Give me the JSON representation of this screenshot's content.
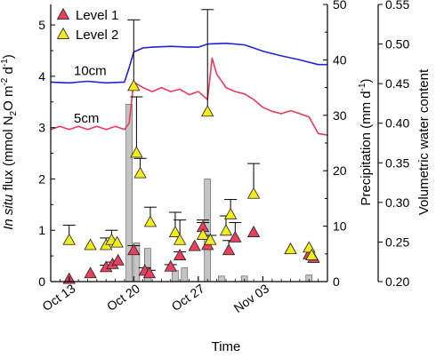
{
  "chart_data": {
    "type": "line",
    "x_axis": {
      "label": "Time",
      "range": [
        "2013-10-11",
        "2013-11-10"
      ],
      "ticks": [
        {
          "date": "2013-10-13",
          "label": "Oct 13"
        },
        {
          "date": "2013-10-20",
          "label": "Oct 20"
        },
        {
          "date": "2013-10-27",
          "label": "Oct 27"
        },
        {
          "date": "2013-11-03",
          "label": "Nov 03"
        }
      ]
    },
    "y_axis_left": {
      "label_prefix": "In situ",
      "label_main": " flux (mmol N",
      "label_sub": "2",
      "label_mid": "O m",
      "label_sup1": "-2",
      "label_mid2": " d",
      "label_sup2": "-1",
      "label_end": ")",
      "range": [
        0,
        5.4
      ],
      "ticks": [
        "0",
        "1",
        "2",
        "3",
        "4",
        "5"
      ]
    },
    "y_axis_precip": {
      "label_main": "Precipitation (mm d",
      "label_sup": "-1",
      "label_end": ")",
      "range": [
        0,
        50
      ],
      "ticks": [
        "0",
        "10",
        "20",
        "30",
        "40",
        "50"
      ]
    },
    "y_axis_vwc": {
      "label": "Volumetric water content",
      "range": [
        0.2,
        0.55
      ],
      "ticks": [
        "0.20",
        "0.25",
        "0.30",
        "0.35",
        "0.40",
        "0.45",
        "0.50",
        "0.55"
      ]
    },
    "legend": {
      "placement": "top-left",
      "entries": [
        {
          "label": "Level 1",
          "color": "#e8405d"
        },
        {
          "label": "Level 2",
          "color": "#f2ec1a"
        }
      ]
    },
    "line_labels": [
      {
        "text": "10cm",
        "series": "vwc_10cm",
        "color": "#2323d6"
      },
      {
        "text": "5cm",
        "series": "vwc_5cm",
        "color": "#e63a5c"
      }
    ],
    "series": [
      {
        "id": "vwc_10cm",
        "axis": "vwc",
        "color": "#2323d6",
        "points": [
          [
            "2013-10-11",
            0.452
          ],
          [
            "2013-10-13",
            0.451
          ],
          [
            "2013-10-15",
            0.453
          ],
          [
            "2013-10-17",
            0.451
          ],
          [
            "2013-10-19",
            0.452
          ],
          [
            "2013-10-19.5",
            0.47
          ],
          [
            "2013-10-20",
            0.49
          ],
          [
            "2013-10-21",
            0.495
          ],
          [
            "2013-10-22",
            0.496
          ],
          [
            "2013-10-24",
            0.497
          ],
          [
            "2013-10-26",
            0.496
          ],
          [
            "2013-10-27",
            0.496
          ],
          [
            "2013-10-28",
            0.5
          ],
          [
            "2013-10-30",
            0.501
          ],
          [
            "2013-11-01",
            0.499
          ],
          [
            "2013-11-02",
            0.495
          ],
          [
            "2013-11-03",
            0.491
          ],
          [
            "2013-11-05",
            0.485
          ],
          [
            "2013-11-07",
            0.48
          ],
          [
            "2013-11-09",
            0.474
          ],
          [
            "2013-11-10",
            0.474
          ]
        ]
      },
      {
        "id": "vwc_5cm",
        "axis": "vwc",
        "color": "#e63a5c",
        "points": [
          [
            "2013-10-11",
            0.392
          ],
          [
            "2013-10-12",
            0.396
          ],
          [
            "2013-10-13",
            0.392
          ],
          [
            "2013-10-14",
            0.396
          ],
          [
            "2013-10-15",
            0.392
          ],
          [
            "2013-10-16",
            0.396
          ],
          [
            "2013-10-17",
            0.392
          ],
          [
            "2013-10-18",
            0.396
          ],
          [
            "2013-10-19",
            0.392
          ],
          [
            "2013-10-19.5",
            0.4
          ],
          [
            "2013-10-20",
            0.452
          ],
          [
            "2013-10-21",
            0.445
          ],
          [
            "2013-10-22",
            0.44
          ],
          [
            "2013-10-23",
            0.445
          ],
          [
            "2013-10-24",
            0.44
          ],
          [
            "2013-10-25",
            0.443
          ],
          [
            "2013-10-26",
            0.436
          ],
          [
            "2013-10-27",
            0.44
          ],
          [
            "2013-10-28",
            0.43
          ],
          [
            "2013-10-28.5",
            0.482
          ],
          [
            "2013-10-29",
            0.462
          ],
          [
            "2013-10-30",
            0.445
          ],
          [
            "2013-10-31",
            0.44
          ],
          [
            "2013-11-01",
            0.437
          ],
          [
            "2013-11-02",
            0.43
          ],
          [
            "2013-11-03",
            0.42
          ],
          [
            "2013-11-04",
            0.415
          ],
          [
            "2013-11-05",
            0.412
          ],
          [
            "2013-11-06",
            0.416
          ],
          [
            "2013-11-07",
            0.412
          ],
          [
            "2013-11-08",
            0.408
          ],
          [
            "2013-11-09",
            0.387
          ],
          [
            "2013-11-10",
            0.385
          ]
        ]
      },
      {
        "id": "precipitation",
        "type": "bar",
        "axis": "precip",
        "color": "#c4c4c4",
        "points": [
          [
            "2013-10-19.5",
            32
          ],
          [
            "2013-10-20.3",
            7
          ],
          [
            "2013-10-21.5",
            6
          ],
          [
            "2013-10-24.5",
            2
          ],
          [
            "2013-10-25.5",
            2.5
          ],
          [
            "2013-10-28",
            18.5
          ],
          [
            "2013-10-29.5",
            1
          ],
          [
            "2013-11-01",
            1
          ],
          [
            "2013-11-08",
            1.2
          ]
        ]
      },
      {
        "id": "level1",
        "name": "Level 1",
        "type": "scatter",
        "axis": "flux",
        "color": "#e8405d",
        "points": [
          {
            "x": "2013-10-13",
            "y": 0.04
          },
          {
            "x": "2013-10-15.3",
            "y": 0.15
          },
          {
            "x": "2013-10-17",
            "y": 0.27,
            "err": 0.05
          },
          {
            "x": "2013-10-17.7",
            "y": 0.33,
            "err": 0.05
          },
          {
            "x": "2013-10-18.3",
            "y": 0.4
          },
          {
            "x": "2013-10-20",
            "y": 0.6,
            "err": 0.1
          },
          {
            "x": "2013-10-21.2",
            "y": 0.2,
            "err": 0.07
          },
          {
            "x": "2013-10-21.7",
            "y": 0.15,
            "err": 0.07
          },
          {
            "x": "2013-10-24",
            "y": 0.28,
            "err": 0.05
          },
          {
            "x": "2013-10-25",
            "y": 0.5,
            "err": 0.08
          },
          {
            "x": "2013-10-26.6",
            "y": 0.68
          },
          {
            "x": "2013-10-27.5",
            "y": 1.05,
            "err": 0.1
          },
          {
            "x": "2013-10-28",
            "y": 0.7
          },
          {
            "x": "2013-10-30.3",
            "y": 0.6,
            "err": 0.2
          },
          {
            "x": "2013-10-31",
            "y": 0.85,
            "err": 0.3
          },
          {
            "x": "2013-11-02",
            "y": 0.95
          },
          {
            "x": "2013-11-06",
            "y": 0.62
          },
          {
            "x": "2013-11-08",
            "y": 0.52
          },
          {
            "x": "2013-11-08.5",
            "y": 0.45
          }
        ]
      },
      {
        "id": "level2",
        "name": "Level 2",
        "type": "scatter",
        "axis": "flux",
        "color": "#f2ec1a",
        "points": [
          {
            "x": "2013-10-13",
            "y": 0.8,
            "err": 0.3
          },
          {
            "x": "2013-10-15.3",
            "y": 0.7
          },
          {
            "x": "2013-10-17",
            "y": 0.7,
            "err": 0.15
          },
          {
            "x": "2013-10-17.6",
            "y": 0.8,
            "err": 0.2
          },
          {
            "x": "2013-10-18.2",
            "y": 0.75
          },
          {
            "x": "2013-10-20",
            "y": 3.8,
            "err": 1.3
          },
          {
            "x": "2013-10-20.3",
            "y": 2.5,
            "err": 1.1
          },
          {
            "x": "2013-10-20.7",
            "y": 2.1,
            "err": 0.3
          },
          {
            "x": "2013-10-21.8",
            "y": 1.15,
            "err": 0.3
          },
          {
            "x": "2013-10-24.5",
            "y": 0.95,
            "err": 0.4
          },
          {
            "x": "2013-10-25",
            "y": 0.8,
            "err": 0.4
          },
          {
            "x": "2013-10-27.5",
            "y": 0.9,
            "err": 0.3
          },
          {
            "x": "2013-10-28",
            "y": 3.3,
            "err": 2.0
          },
          {
            "x": "2013-10-28.3",
            "y": 0.8,
            "err": 0.1
          },
          {
            "x": "2013-10-30",
            "y": 0.98,
            "err": 0.3
          },
          {
            "x": "2013-10-30.5",
            "y": 1.3,
            "err": 0.3
          },
          {
            "x": "2013-11-02",
            "y": 1.7,
            "err": 0.6
          },
          {
            "x": "2013-11-06",
            "y": 0.62
          },
          {
            "x": "2013-11-08",
            "y": 0.65
          },
          {
            "x": "2013-11-08.3",
            "y": 0.5
          }
        ]
      }
    ]
  }
}
